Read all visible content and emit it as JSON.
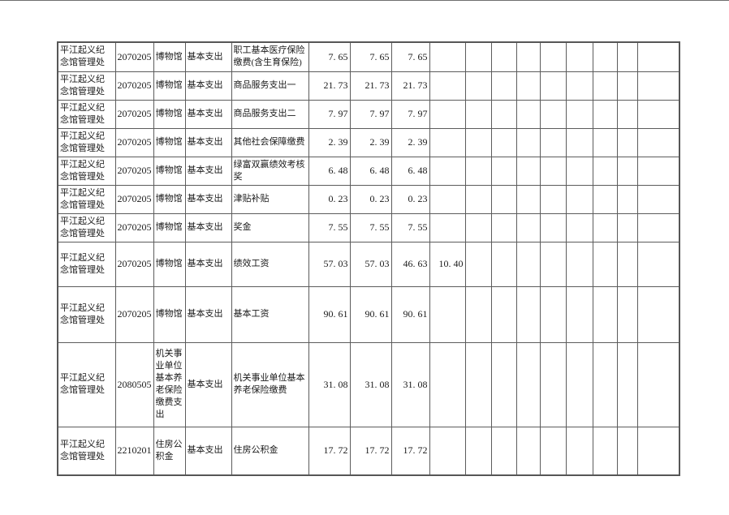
{
  "page": {
    "background_color": "#ffffff",
    "top_divider_color": "#6e6e6e"
  },
  "table": {
    "border_color": "#5c5c5c",
    "columns": [
      {
        "key": "org",
        "name": "unit-name-column",
        "width": 71,
        "style": "text"
      },
      {
        "key": "code",
        "name": "budget-code-column",
        "width": 47,
        "style": "code"
      },
      {
        "key": "category",
        "name": "category-column",
        "width": 39,
        "style": "text"
      },
      {
        "key": "type",
        "name": "expense-type-column",
        "width": 57,
        "style": "text"
      },
      {
        "key": "item",
        "name": "expense-item-column",
        "width": 95,
        "style": "text"
      },
      {
        "key": "amount1",
        "name": "amount-1-column",
        "width": 51,
        "style": "number"
      },
      {
        "key": "amount2",
        "name": "amount-2-column",
        "width": 51,
        "style": "number"
      },
      {
        "key": "amount3",
        "name": "amount-3-column",
        "width": 47,
        "style": "number"
      },
      {
        "key": "amount4",
        "name": "amount-4-column",
        "width": 44,
        "style": "number"
      },
      {
        "key": "empty1",
        "name": "empty-1-column",
        "width": 32,
        "style": "number"
      },
      {
        "key": "empty2",
        "name": "empty-2-column",
        "width": 31,
        "style": "number"
      },
      {
        "key": "empty3",
        "name": "empty-3-column",
        "width": 29,
        "style": "number"
      },
      {
        "key": "empty4",
        "name": "empty-4-column",
        "width": 32,
        "style": "number"
      },
      {
        "key": "empty5",
        "name": "empty-5-column",
        "width": 33,
        "style": "number"
      },
      {
        "key": "empty6",
        "name": "empty-6-column",
        "width": 30,
        "style": "number"
      },
      {
        "key": "empty7",
        "name": "empty-7-column",
        "width": 25,
        "style": "number"
      },
      {
        "key": "empty8",
        "name": "empty-8-column",
        "width": 52,
        "style": "number"
      }
    ],
    "rows": [
      {
        "height": 36,
        "cells": {
          "org": "平江起义纪念馆管理处",
          "code": "2070205",
          "category": "博物馆",
          "type": "基本支出",
          "item": "职工基本医疗保险缴费(含生育保险)",
          "amount1": "7. 65",
          "amount2": "7. 65",
          "amount3": "7. 65"
        }
      },
      {
        "height": 35,
        "cells": {
          "org": "平江起义纪念馆管理处",
          "code": "2070205",
          "category": "博物馆",
          "type": "基本支出",
          "item": "商品服务支出一",
          "amount1": "21. 73",
          "amount2": "21. 73",
          "amount3": "21. 73"
        }
      },
      {
        "height": 35,
        "cells": {
          "org": "平江起义纪念馆管理处",
          "code": "2070205",
          "category": "博物馆",
          "type": "基本支出",
          "item": "商品服务支出二",
          "amount1": "7. 97",
          "amount2": "7. 97",
          "amount3": "7. 97"
        }
      },
      {
        "height": 35,
        "cells": {
          "org": "平江起义纪念馆管理处",
          "code": "2070205",
          "category": "博物馆",
          "type": "基本支出",
          "item": "其他社会保障缴费",
          "amount1": "2. 39",
          "amount2": "2. 39",
          "amount3": "2. 39"
        }
      },
      {
        "height": 35,
        "cells": {
          "org": "平江起义纪念馆管理处",
          "code": "2070205",
          "category": "博物馆",
          "type": "基本支出",
          "item": "绿富双赢绩效考核奖",
          "amount1": "6. 48",
          "amount2": "6. 48",
          "amount3": "6. 48"
        }
      },
      {
        "height": 35,
        "cells": {
          "org": "平江起义纪念馆管理处",
          "code": "2070205",
          "category": "博物馆",
          "type": "基本支出",
          "item": "津贴补贴",
          "amount1": "0. 23",
          "amount2": "0. 23",
          "amount3": "0. 23"
        }
      },
      {
        "height": 35,
        "cells": {
          "org": "平江起义纪念馆管理处",
          "code": "2070205",
          "category": "博物馆",
          "type": "基本支出",
          "item": "奖金",
          "amount1": "7. 55",
          "amount2": "7. 55",
          "amount3": "7. 55"
        }
      },
      {
        "height": 55,
        "cells": {
          "org": "平江起义纪念馆管理处",
          "code": "2070205",
          "category": "博物馆",
          "type": "基本支出",
          "item": "绩效工资",
          "amount1": "57. 03",
          "amount2": "57. 03",
          "amount3": "46. 63",
          "amount4": "10. 40"
        }
      },
      {
        "height": 69,
        "cells": {
          "org": "平江起义纪念馆管理处",
          "code": "2070205",
          "category": "博物馆",
          "type": "基本支出",
          "item": "基本工资",
          "amount1": "90. 61",
          "amount2": "90. 61",
          "amount3": "90. 61"
        }
      },
      {
        "height": 104,
        "cells": {
          "org": "平江起义纪念馆管理处",
          "code": "2080505",
          "category": "机关事业单位基本养老保险缴费支出",
          "type": "基本支出",
          "item": "机关事业单位基本养老保险缴费",
          "amount1": "31. 08",
          "amount2": "31. 08",
          "amount3": "31. 08"
        }
      },
      {
        "height": 60,
        "cells": {
          "org": "平江起义纪念馆管理处",
          "code": "2210201",
          "category": "住房公积金",
          "type": "基本支出",
          "item": "住房公积金",
          "amount1": "17. 72",
          "amount2": "17. 72",
          "amount3": "17. 72"
        }
      }
    ]
  }
}
